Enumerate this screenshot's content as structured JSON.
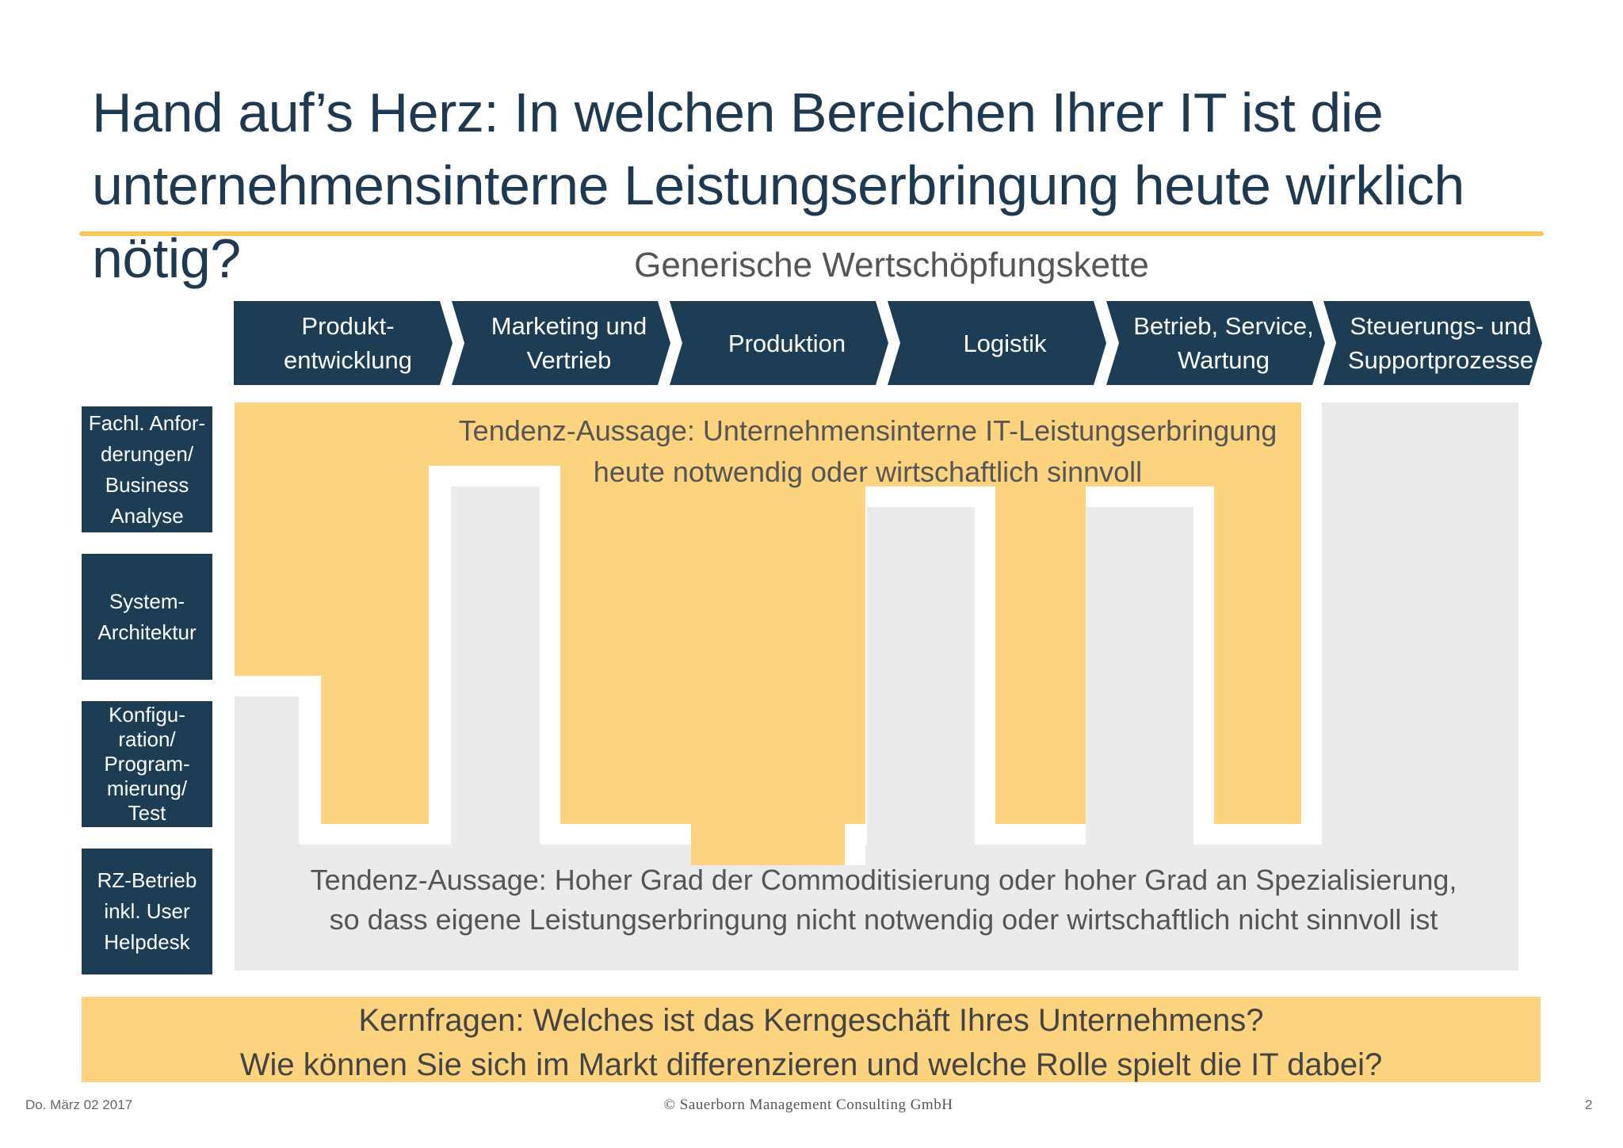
{
  "title": {
    "line1": "Hand auf’s Herz: In welchen Bereichen Ihrer IT ist die",
    "line2": "unternehmensinterne Leistungserbringung heute wirklich nötig?"
  },
  "subtitle": "Generische Wertschöpfungskette",
  "chain": [
    {
      "line1": "Produkt-",
      "line2": "entwicklung"
    },
    {
      "line1": "Marketing und",
      "line2": "Vertrieb"
    },
    {
      "line1": "Produktion",
      "line2": ""
    },
    {
      "line1": "Logistik",
      "line2": ""
    },
    {
      "line1": "Betrieb, Service,",
      "line2": "Wartung"
    },
    {
      "line1": "Steuerungs- und",
      "line2": "Supportprozesse"
    }
  ],
  "rows": [
    {
      "lines": [
        "Fachl. Anfor-",
        "derungen/",
        "Business",
        "Analyse"
      ]
    },
    {
      "lines": [
        "System-",
        "Architektur"
      ]
    },
    {
      "lines": [
        "Konfigu-",
        "ration/",
        "Program-",
        "mierung/",
        "Test"
      ]
    },
    {
      "lines": [
        "RZ-Betrieb",
        "inkl. User",
        "Helpdesk"
      ]
    }
  ],
  "statement_internal": {
    "line1": "Tendenz-Aussage: Unternehmensinterne IT-Leistungserbringung",
    "line2": "heute notwendig oder wirtschaftlich sinnvoll"
  },
  "statement_external": {
    "line1": "Tendenz-Aussage: Hoher Grad der Commoditisierung oder hoher Grad an Spezialisierung,",
    "line2": "so dass eigene Leistungserbringung nicht notwendig oder wirtschaftlich nicht sinnvoll ist"
  },
  "key_questions": {
    "line1": "Kernfragen: Welches ist das Kerngeschäft Ihres Unternehmens?",
    "line2": "Wie können Sie sich im Markt differenzieren und welche Rolle spielt die IT dabei?"
  },
  "footer": {
    "date": "Do. März 02 2017",
    "copyright": "© Sauerborn Management Consulting GmbH",
    "page": "2"
  },
  "colors": {
    "navy": "#1d3d55",
    "accent_yellow": "#fcd37e",
    "light_gray": "#ebebeb"
  }
}
